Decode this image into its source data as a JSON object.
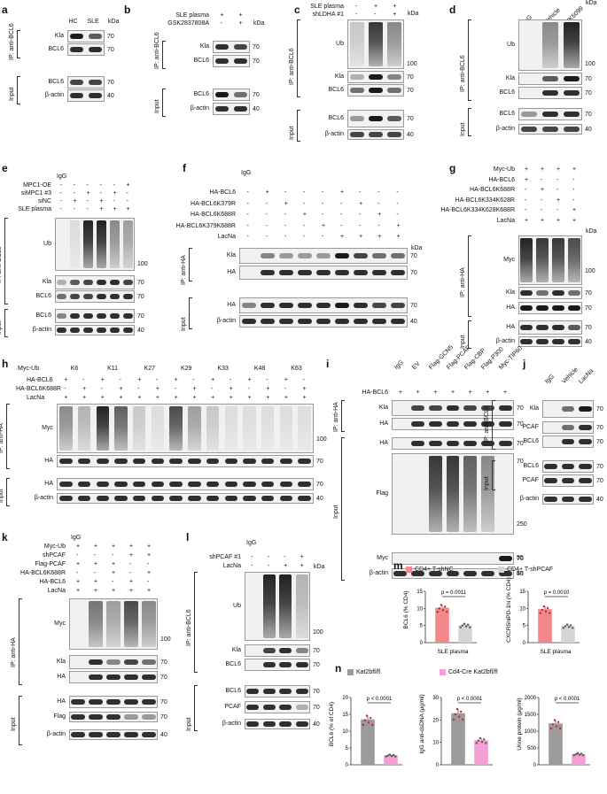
{
  "panels": {
    "a": {
      "letter": "a",
      "ip": "IP: anti-BCL6",
      "input": "Input",
      "cols": [
        "HC",
        "SLE"
      ],
      "kda": "kDa",
      "rows": [
        "Kla",
        "BCL6",
        "BCL6",
        "β-actin"
      ],
      "mw": [
        "70",
        "70",
        "70",
        "40"
      ]
    },
    "b": {
      "letter": "b",
      "ip": "IP: anti-BCL6",
      "input": "Input",
      "cond": [
        {
          "label": "SLE plasma",
          "vals": [
            "+",
            "+"
          ]
        },
        {
          "label": "GSK2837808A",
          "vals": [
            "-",
            "+"
          ]
        }
      ],
      "kda": "kDa",
      "rows": [
        "Kla",
        "BCL6",
        "BCL6",
        "β-actin"
      ],
      "mw": [
        "70",
        "70",
        "70",
        "40"
      ]
    },
    "c": {
      "letter": "c",
      "ip": "IP: anti-BCL6",
      "input": "Input",
      "cond": [
        {
          "label": "SLE plasma",
          "vals": [
            "-",
            "+",
            "+"
          ]
        },
        {
          "label": "shLDHA #1",
          "vals": [
            "-",
            "-",
            "+"
          ]
        }
      ],
      "kda": "kDa",
      "rows": [
        "Ub",
        "Kla",
        "BCL6",
        "BCL6",
        "β-actin"
      ],
      "mw": [
        "100",
        "70",
        "70",
        "70",
        "40"
      ]
    },
    "d": {
      "letter": "d",
      "ip": "IP: anti-BCL6",
      "input": "Input",
      "cols": [
        "IgG",
        "Vehicle",
        "UK5099"
      ],
      "kda": "kDa",
      "rows": [
        "Ub",
        "Kla",
        "BCL6",
        "BCL6",
        "β-actin"
      ],
      "mw": [
        "100",
        "70",
        "70",
        "70",
        "40"
      ]
    },
    "e": {
      "letter": "e",
      "ip": "IP: anti-BCL6",
      "input": "Input",
      "igg": "IgG",
      "cond": [
        {
          "label": "MPC1-OE",
          "vals": [
            "-",
            "-",
            "-",
            "-",
            "-",
            "+"
          ]
        },
        {
          "label": "siMPC1 #3",
          "vals": [
            "-",
            "-",
            "+",
            "-",
            "+",
            "-"
          ]
        },
        {
          "label": "siNC",
          "vals": [
            "-",
            "+",
            "-",
            "+",
            "-",
            "-"
          ]
        },
        {
          "label": "SLE plasma",
          "vals": [
            "-",
            "-",
            "-",
            "+",
            "+",
            "+"
          ]
        }
      ],
      "rows": [
        "Ub",
        "Kla",
        "BCL6",
        "BCL6",
        "β-actin"
      ],
      "mw": [
        "100",
        "70",
        "70",
        "70",
        "40"
      ]
    },
    "f": {
      "letter": "f",
      "ip": "IP: anti-HA",
      "input": "Input",
      "igg": "IgG",
      "kda": "kDa",
      "cond": [
        {
          "label": "HA-BCL6",
          "vals": [
            "-",
            "+",
            "-",
            "-",
            "-",
            "+",
            "-",
            "-",
            "-"
          ]
        },
        {
          "label": "HA-BCL6K379R",
          "vals": [
            "-",
            "-",
            "+",
            "-",
            "-",
            "-",
            "+",
            "-",
            "-"
          ]
        },
        {
          "label": "HA-BCL6K688R",
          "vals": [
            "-",
            "-",
            "-",
            "+",
            "-",
            "-",
            "-",
            "+",
            "-"
          ]
        },
        {
          "label": "HA-BCL6K379K688R",
          "vals": [
            "-",
            "-",
            "-",
            "-",
            "+",
            "-",
            "-",
            "-",
            "+"
          ]
        },
        {
          "label": "LacNa",
          "vals": [
            "-",
            "-",
            "-",
            "-",
            "-",
            "+",
            "+",
            "+",
            "+"
          ]
        }
      ],
      "rows": [
        "Kla",
        "HA",
        "HA",
        "β-actin"
      ],
      "mw": [
        "70",
        "70",
        "70",
        "40"
      ]
    },
    "g": {
      "letter": "g",
      "ip": "IP: anti-HA",
      "input": "Input",
      "kda": "kDa",
      "cond": [
        {
          "label": "Myc-Ub",
          "vals": [
            "+",
            "+",
            "+",
            "+"
          ]
        },
        {
          "label": "HA-BCL6",
          "vals": [
            "+",
            "-",
            "-",
            "-"
          ]
        },
        {
          "label": "HA-BCL6K688R",
          "vals": [
            "-",
            "+",
            "-",
            "-"
          ]
        },
        {
          "label": "HA-BCL6K334K628R",
          "vals": [
            "-",
            "-",
            "+",
            "-"
          ]
        },
        {
          "label": "HA-BCL6K334K628K688R",
          "vals": [
            "-",
            "-",
            "-",
            "+"
          ]
        },
        {
          "label": "LacNa",
          "vals": [
            "+",
            "+",
            "+",
            "+"
          ]
        }
      ],
      "rows": [
        "Myc",
        "Kla",
        "HA",
        "HA",
        "β-actin"
      ],
      "mw": [
        "100",
        "70",
        "70",
        "70",
        "40"
      ]
    },
    "h": {
      "letter": "h",
      "ip": "IP: anti-HA",
      "input": "Input",
      "groups_label": "Myc-Ub",
      "groups": [
        "K6",
        "K11",
        "K27",
        "K29",
        "K33",
        "K48",
        "K63"
      ],
      "cond": [
        {
          "label": "HA-BCL6",
          "vals": [
            "+",
            "-",
            "+",
            "-",
            "+",
            "-",
            "+",
            "-",
            "+",
            "-",
            "+",
            "-",
            "+",
            "-"
          ]
        },
        {
          "label": "HA-BCL6K688R",
          "vals": [
            "-",
            "+",
            "-",
            "+",
            "-",
            "+",
            "-",
            "+",
            "-",
            "+",
            "-",
            "+",
            "-",
            "+"
          ]
        },
        {
          "label": "LacNa",
          "vals": [
            "+",
            "+",
            "+",
            "+",
            "+",
            "+",
            "+",
            "+",
            "+",
            "+",
            "+",
            "+",
            "+",
            "+"
          ]
        }
      ],
      "rows": [
        "Myc",
        "HA",
        "HA",
        "β-actin"
      ],
      "mw": [
        "100",
        "70",
        "70",
        "40"
      ]
    },
    "i": {
      "letter": "i",
      "ip": "IP: anti-HA",
      "input": "Input",
      "cols": [
        "IgG",
        "EV",
        "Flag-GCN5",
        "Flag-PCAF",
        "Flag-CBP",
        "Flag-P300",
        "Myc-TIP60"
      ],
      "cond": [
        {
          "label": "HA-BCL6",
          "vals": [
            "+",
            "+",
            "+",
            "+",
            "+",
            "+",
            "+"
          ]
        }
      ],
      "rows": [
        "Kla",
        "HA",
        "HA",
        "Flag",
        "Myc",
        "β-actin"
      ],
      "mw": [
        "70",
        "70",
        "70",
        "250",
        "70",
        "55",
        "40"
      ]
    },
    "j": {
      "letter": "j",
      "ip": "IP: anti-BCL6",
      "input": "Input",
      "cols": [
        "IgG",
        "Vehicle",
        "LacNa"
      ],
      "rows": [
        "Kla",
        "PCAF",
        "BCL6",
        "BCL6",
        "PCAF",
        "β-actin"
      ],
      "mw": [
        "70",
        "70",
        "70",
        "70",
        "70",
        "40"
      ]
    },
    "k": {
      "letter": "k",
      "ip": "IP: anti-HA",
      "input": "Input",
      "igg": "IgG",
      "cond": [
        {
          "label": "Myc-Ub",
          "vals": [
            "+",
            "+",
            "+",
            "+",
            "+"
          ]
        },
        {
          "label": "shPCAF",
          "vals": [
            "-",
            "-",
            "-",
            "+",
            "+"
          ]
        },
        {
          "label": "Flag-PCAF",
          "vals": [
            "+",
            "+",
            "+",
            "-",
            "-"
          ]
        },
        {
          "label": "HA-BCL6K688R",
          "vals": [
            "-",
            "-",
            "+",
            "-",
            "+"
          ]
        },
        {
          "label": "HA-BCL6",
          "vals": [
            "+",
            "+",
            "-",
            "+",
            "-"
          ]
        },
        {
          "label": "LacNa",
          "vals": [
            "+",
            "+",
            "+",
            "+",
            "+"
          ]
        }
      ],
      "rows": [
        "Myc",
        "Kla",
        "HA",
        "HA",
        "Flag",
        "β-actin"
      ],
      "mw": [
        "100",
        "70",
        "70",
        "70",
        "70",
        "40"
      ]
    },
    "l": {
      "letter": "l",
      "ip": "IP: anti-BCL6",
      "input": "Input",
      "igg": "IgG",
      "kda": "kDa",
      "cond": [
        {
          "label": "shPCAF #1",
          "vals": [
            "-",
            "-",
            "-",
            "+"
          ]
        },
        {
          "label": "LacNa",
          "vals": [
            "-",
            "-",
            "+",
            "+"
          ]
        }
      ],
      "rows": [
        "Ub",
        "Kla",
        "BCL6",
        "BCL6",
        "PCAF",
        "β-actin"
      ],
      "mw": [
        "100",
        "70",
        "70",
        "70",
        "70",
        "40"
      ]
    }
  },
  "chart_data": [
    {
      "panel": "m",
      "type": "bar",
      "ylabel": "BCL6 (% CD4)",
      "xlabel": "SLE plasma",
      "ylim": [
        0,
        15
      ],
      "yticks": [
        0,
        5,
        10,
        15
      ],
      "series": [
        {
          "name": "CD4+ T-shNC",
          "values": [
            10.2
          ]
        },
        {
          "name": "CD4+ T-shPCAF",
          "values": [
            5.1
          ]
        }
      ],
      "pvalue": "p = 0.0011"
    },
    {
      "panel": "m",
      "type": "bar",
      "ylabel": "CXCR5hiPD-1hi (% CD4)",
      "xlabel": "SLE plasma",
      "ylim": [
        0,
        15
      ],
      "yticks": [
        0,
        5,
        10,
        15
      ],
      "series": [
        {
          "name": "CD4+ T-shNC",
          "values": [
            9.8
          ]
        },
        {
          "name": "CD4+ T-shPCAF",
          "values": [
            4.9
          ]
        }
      ],
      "pvalue": "p = 0.0010"
    },
    {
      "panel": "n",
      "type": "bar",
      "ylabel": "BCL6 (% of CD4)",
      "ylim": [
        0,
        20
      ],
      "yticks": [
        0,
        5,
        10,
        15,
        20
      ],
      "series": [
        {
          "name": "Kat2bfl/fl",
          "values": [
            13.5
          ]
        },
        {
          "name": "Cd4-Cre Kat2bfl/fl",
          "values": [
            2.8
          ]
        }
      ],
      "pvalue": "p < 0.0001"
    },
    {
      "panel": "n",
      "type": "bar",
      "ylabel": "IgG anti-dsDNA (μg/ml)",
      "ylim": [
        0,
        30
      ],
      "yticks": [
        0,
        10,
        20,
        30
      ],
      "series": [
        {
          "name": "Kat2bfl/fl",
          "values": [
            23
          ]
        },
        {
          "name": "Cd4-Cre Kat2bfl/fl",
          "values": [
            11
          ]
        }
      ],
      "pvalue": "p < 0.0001"
    },
    {
      "panel": "n",
      "type": "bar",
      "ylabel": "Urine protein (μg/ml)",
      "ylim": [
        0,
        2000
      ],
      "yticks": [
        0,
        500,
        1000,
        1500,
        2000
      ],
      "series": [
        {
          "name": "Kat2bfl/fl",
          "values": [
            1230
          ]
        },
        {
          "name": "Cd4-Cre Kat2bfl/fl",
          "values": [
            320
          ]
        }
      ],
      "pvalue": "p < 0.0001"
    }
  ],
  "legend_m": {
    "letter": "m",
    "items": [
      {
        "label": "CD4+ T-shNC",
        "color": "#f4878c"
      },
      {
        "label": "CD4+ T-shPCAF",
        "color": "#d5d5d5"
      }
    ]
  },
  "legend_n": {
    "letter": "n",
    "items": [
      {
        "label": "Kat2bfl/fl",
        "color": "#9b9b9b"
      },
      {
        "label": "Cd4-Cre Kat2bfl/fl",
        "color": "#f2a0d6"
      }
    ]
  }
}
